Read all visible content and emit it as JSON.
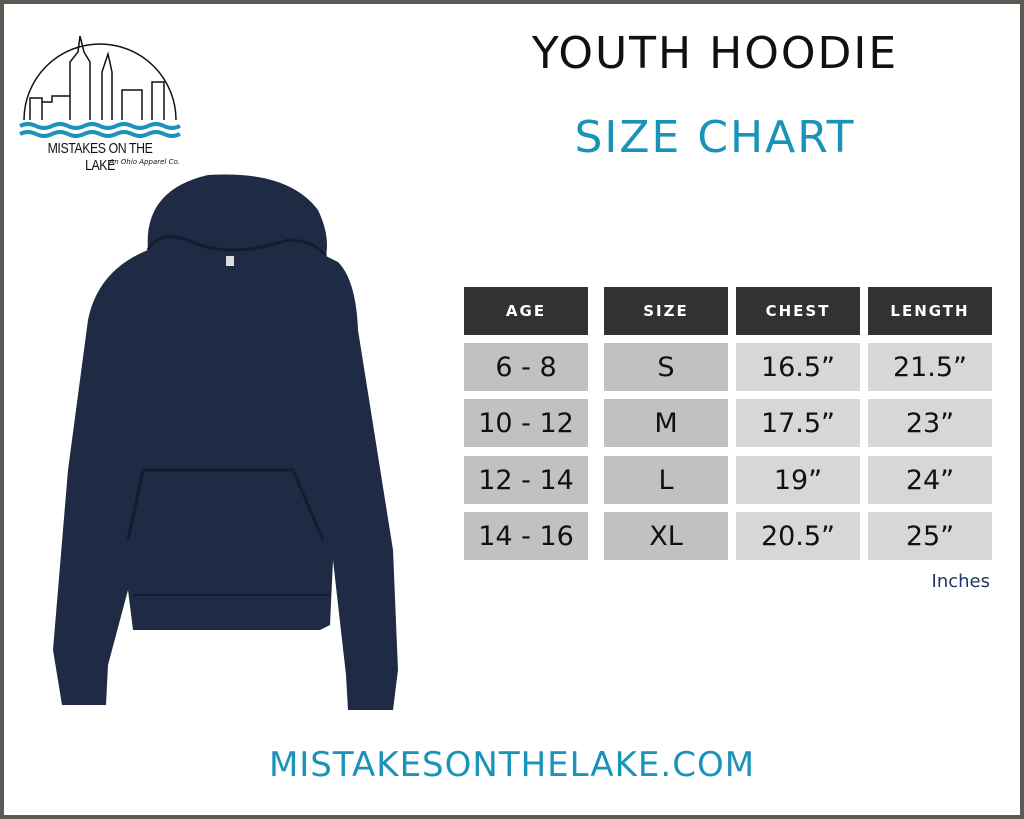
{
  "logo": {
    "brand": "MISTAKES ON THE LAKE",
    "tagline": "An Ohio Apparel Co."
  },
  "title": "YOUTH HOODIE",
  "subtitle": "SIZE CHART",
  "colors": {
    "accent": "#1a93b8",
    "header_bg": "#323133",
    "hoodie": "#1f2a44",
    "units_text": "#1f3566"
  },
  "table": {
    "headers": [
      "AGE",
      "SIZE",
      "CHEST",
      "LENGTH"
    ],
    "rows": [
      [
        "6 - 8",
        "S",
        "16.5”",
        "21.5”"
      ],
      [
        "10 - 12",
        "M",
        "17.5”",
        "23”"
      ],
      [
        "12 - 14",
        "L",
        "19”",
        "24”"
      ],
      [
        "14 - 16",
        "XL",
        "20.5”",
        "25”"
      ]
    ],
    "units": "Inches"
  },
  "footer": "MISTAKESONTHELAKE.COM"
}
